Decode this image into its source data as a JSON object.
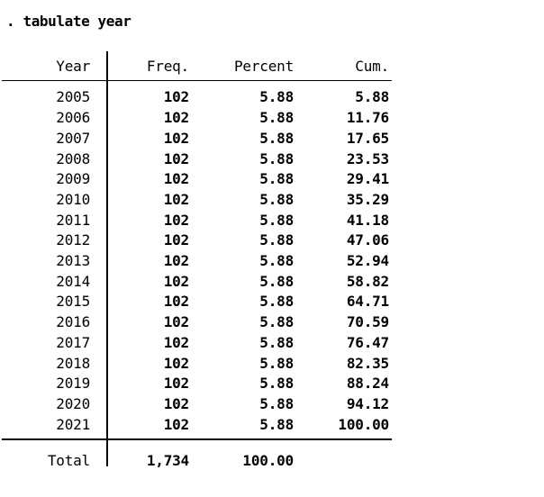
{
  "command": ". tabulate year",
  "colors": {
    "background": "#ffffff",
    "text": "#000000",
    "line": "#000000"
  },
  "table": {
    "columns": [
      "Year",
      "Freq.",
      "Percent",
      "Cum."
    ],
    "rows": [
      {
        "year": "2005",
        "freq": "102",
        "percent": "5.88",
        "cum": "5.88"
      },
      {
        "year": "2006",
        "freq": "102",
        "percent": "5.88",
        "cum": "11.76"
      },
      {
        "year": "2007",
        "freq": "102",
        "percent": "5.88",
        "cum": "17.65"
      },
      {
        "year": "2008",
        "freq": "102",
        "percent": "5.88",
        "cum": "23.53"
      },
      {
        "year": "2009",
        "freq": "102",
        "percent": "5.88",
        "cum": "29.41"
      },
      {
        "year": "2010",
        "freq": "102",
        "percent": "5.88",
        "cum": "35.29"
      },
      {
        "year": "2011",
        "freq": "102",
        "percent": "5.88",
        "cum": "41.18"
      },
      {
        "year": "2012",
        "freq": "102",
        "percent": "5.88",
        "cum": "47.06"
      },
      {
        "year": "2013",
        "freq": "102",
        "percent": "5.88",
        "cum": "52.94"
      },
      {
        "year": "2014",
        "freq": "102",
        "percent": "5.88",
        "cum": "58.82"
      },
      {
        "year": "2015",
        "freq": "102",
        "percent": "5.88",
        "cum": "64.71"
      },
      {
        "year": "2016",
        "freq": "102",
        "percent": "5.88",
        "cum": "70.59"
      },
      {
        "year": "2017",
        "freq": "102",
        "percent": "5.88",
        "cum": "76.47"
      },
      {
        "year": "2018",
        "freq": "102",
        "percent": "5.88",
        "cum": "82.35"
      },
      {
        "year": "2019",
        "freq": "102",
        "percent": "5.88",
        "cum": "88.24"
      },
      {
        "year": "2020",
        "freq": "102",
        "percent": "5.88",
        "cum": "94.12"
      },
      {
        "year": "2021",
        "freq": "102",
        "percent": "5.88",
        "cum": "100.00"
      }
    ],
    "total": {
      "label": "Total",
      "freq": "1,734",
      "percent": "100.00",
      "cum": ""
    }
  }
}
